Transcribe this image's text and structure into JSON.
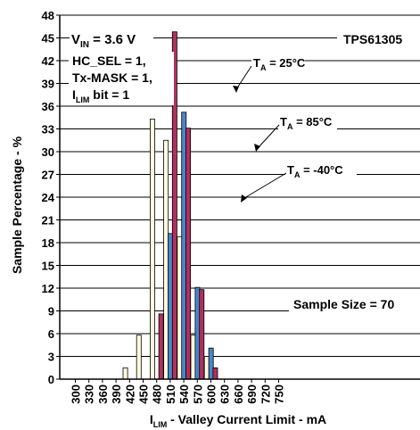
{
  "chart_data": {
    "type": "bar",
    "ylabel": "Sample Percentage - %",
    "xlabel_main": "I",
    "xlabel_sub": "LIM",
    "xlabel_rest": " - Valley Current Limit - mA",
    "categories": [
      "300",
      "330",
      "360",
      "390",
      "420",
      "450",
      "480",
      "510",
      "540",
      "570",
      "600",
      "630",
      "660",
      "690",
      "720",
      "750"
    ],
    "yticks": [
      "0",
      "3",
      "6",
      "9",
      "12",
      "15",
      "18",
      "21",
      "24",
      "27",
      "30",
      "33",
      "36",
      "39",
      "42",
      "45",
      "48"
    ],
    "ylim": [
      0,
      48
    ],
    "grid": true,
    "series": [
      {
        "name": "TA = -40°C",
        "color": "#fffbe0",
        "values": [
          0,
          0,
          0,
          0,
          1.5,
          5.8,
          34.3,
          31.5,
          18.8,
          5.8,
          3.0,
          0,
          0,
          0,
          0,
          0
        ]
      },
      {
        "name": "TA = 85°C",
        "color": "#4a86c8",
        "values": [
          0,
          0,
          0,
          0,
          0,
          0,
          0,
          19.2,
          35.2,
          12.1,
          4.1,
          0,
          0,
          0,
          0,
          0
        ]
      },
      {
        "name": "TA = 25°C",
        "color": "#b0305e",
        "values": [
          0,
          0,
          0,
          0,
          0,
          0,
          8.6,
          45.8,
          33.1,
          11.8,
          1.5,
          0,
          0,
          0,
          0,
          0
        ]
      }
    ],
    "annotations": {
      "vin_main": "V",
      "vin_sub": "IN",
      "vin_rest": " = 3.6 V",
      "device": "TPS61305",
      "hc_sel": "HC_SEL = 1,",
      "tx_mask": "Tx-MASK = 1,",
      "ilim_main": "I",
      "ilim_sub": "LIM",
      "ilim_rest": " bit = 1",
      "ta25_main": "T",
      "ta25_sub": "A",
      "ta25_rest": " = 25°C",
      "ta85_main": "T",
      "ta85_sub": "A",
      "ta85_rest": " = 85°C",
      "tam40_main": "T",
      "tam40_sub": "A",
      "tam40_rest": " = -40°C",
      "sample_size": "Sample Size = 70"
    }
  }
}
